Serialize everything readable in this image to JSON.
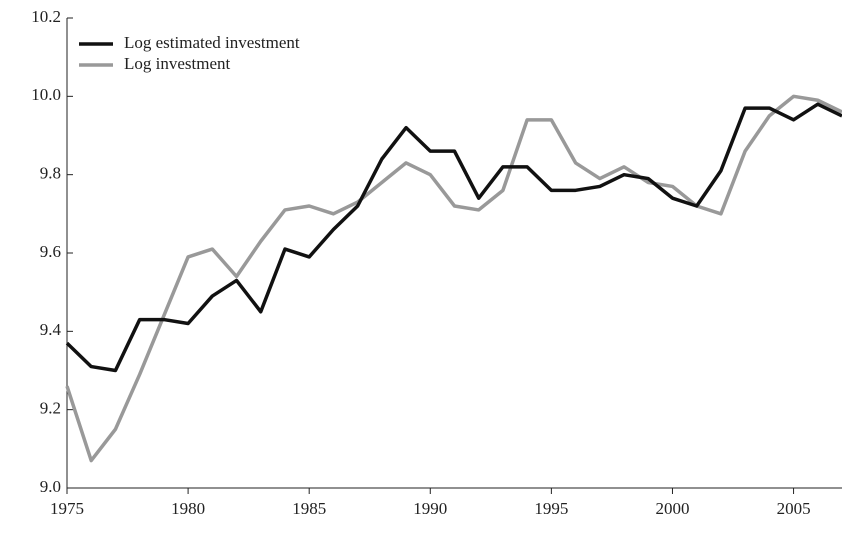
{
  "chart_data": {
    "type": "line",
    "x": [
      1975,
      1976,
      1977,
      1978,
      1979,
      1980,
      1981,
      1982,
      1983,
      1984,
      1985,
      1986,
      1987,
      1988,
      1989,
      1990,
      1991,
      1992,
      1993,
      1994,
      1995,
      1996,
      1997,
      1998,
      1999,
      2000,
      2001,
      2002,
      2003,
      2004,
      2005,
      2006,
      2007
    ],
    "series": [
      {
        "name": "Log estimated investment",
        "color": "#111111",
        "values": [
          9.37,
          9.31,
          9.3,
          9.43,
          9.43,
          9.42,
          9.49,
          9.53,
          9.45,
          9.61,
          9.59,
          9.66,
          9.72,
          9.84,
          9.92,
          9.86,
          9.86,
          9.74,
          9.82,
          9.82,
          9.76,
          9.76,
          9.77,
          9.8,
          9.79,
          9.74,
          9.72,
          9.81,
          9.97,
          9.97,
          9.94,
          9.98,
          9.95
        ]
      },
      {
        "name": "Log investment",
        "color": "#999999",
        "values": [
          9.26,
          9.07,
          9.15,
          9.29,
          9.44,
          9.59,
          9.61,
          9.54,
          9.63,
          9.71,
          9.72,
          9.7,
          9.73,
          9.78,
          9.83,
          9.8,
          9.72,
          9.71,
          9.76,
          9.94,
          9.94,
          9.83,
          9.79,
          9.82,
          9.78,
          9.77,
          9.72,
          9.7,
          9.86,
          9.95,
          10.0,
          9.99,
          9.96
        ]
      }
    ],
    "xlim": [
      1975,
      2007
    ],
    "xticks": [
      1975,
      1980,
      1985,
      1990,
      1995,
      2000,
      2005
    ],
    "ylim": [
      9.0,
      10.2
    ],
    "yticks": [
      {
        "value": 9.0,
        "label": "9.0"
      },
      9.2,
      9.4,
      9.6,
      9.8,
      {
        "value": 10.0,
        "label": "10.0"
      },
      10.2
    ],
    "legend": "top-left"
  }
}
